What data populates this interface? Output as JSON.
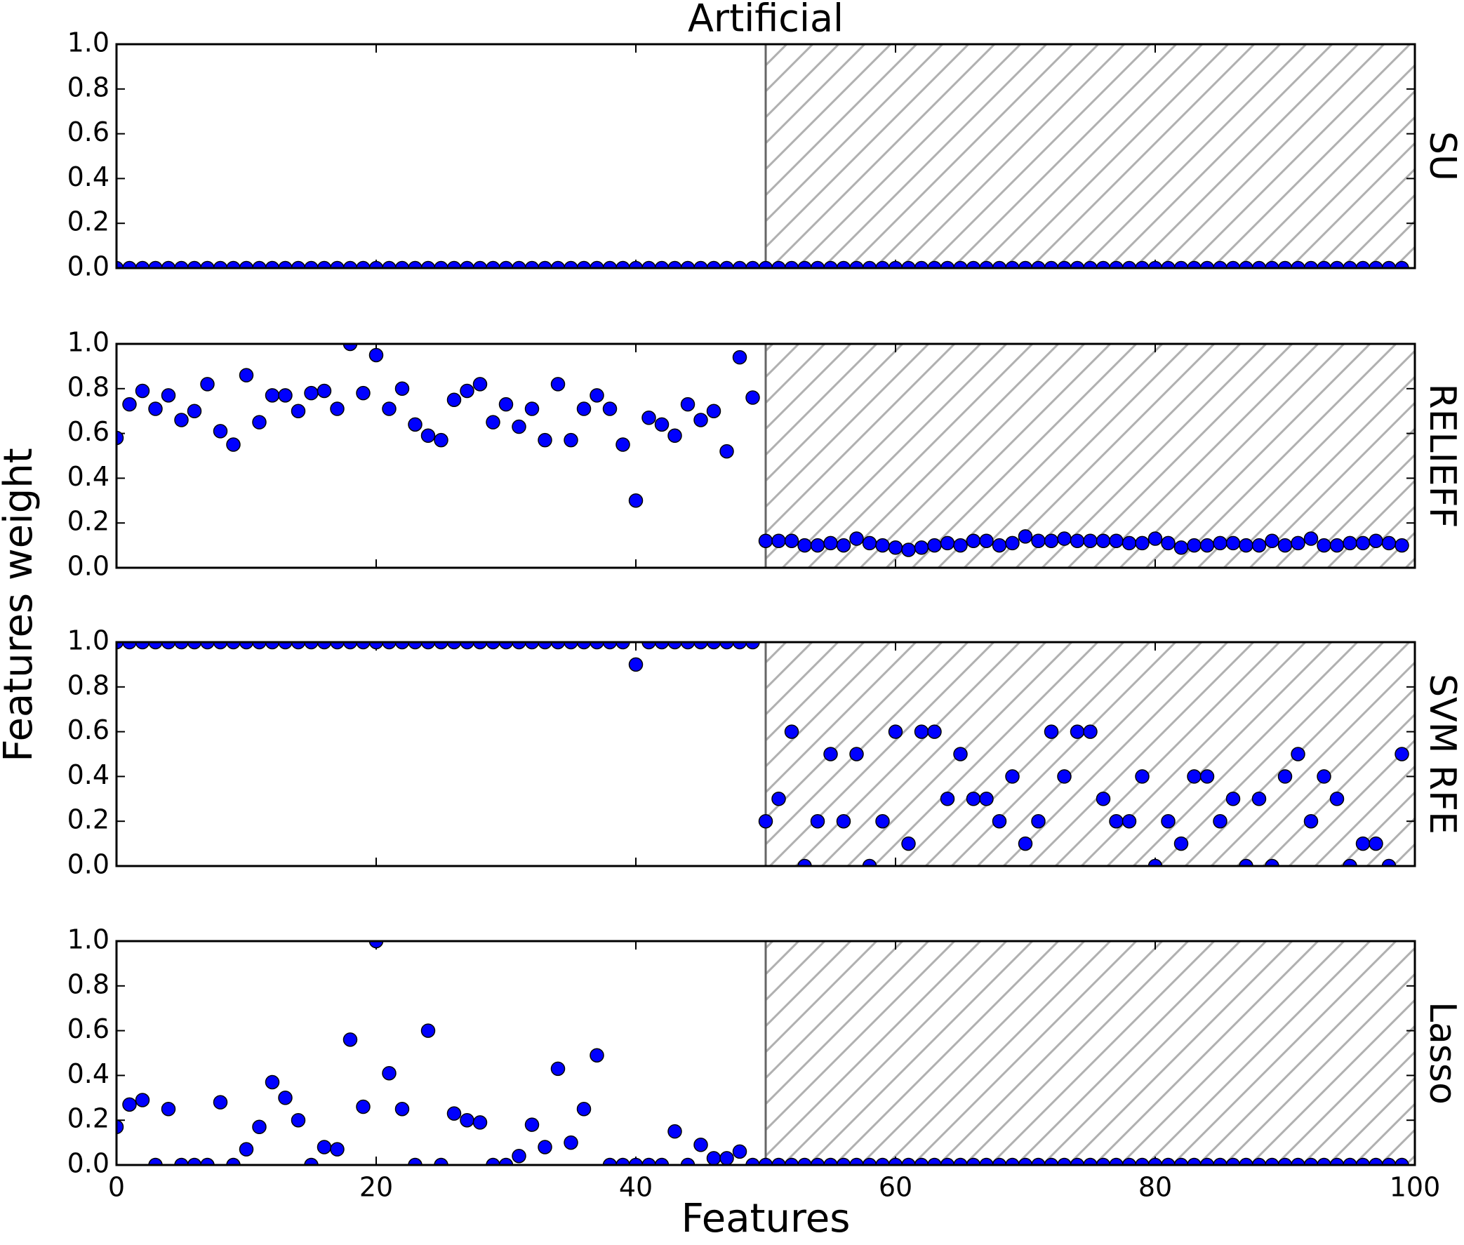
{
  "chart_data": {
    "type": "scatter",
    "title": "Artificial",
    "xlabel": "Features",
    "ylabel": "Features weight",
    "xlim": [
      0,
      100
    ],
    "xticks": [
      0,
      20,
      40,
      60,
      80,
      100
    ],
    "ylim": [
      0,
      1
    ],
    "yticks": [
      {
        "value": 0,
        "label": "0.0"
      },
      {
        "value": 0.2,
        "label": "0.2"
      },
      {
        "value": 0.4,
        "label": "0.4"
      },
      {
        "value": 0.6,
        "label": "0.6"
      },
      {
        "value": 0.8,
        "label": "0.8"
      },
      {
        "value": 1,
        "label": "1.0"
      }
    ],
    "shade_xlim": [
      50,
      100
    ],
    "color": "#0000ff",
    "edgecolor": "#000000",
    "x": [
      0,
      1,
      2,
      3,
      4,
      5,
      6,
      7,
      8,
      9,
      10,
      11,
      12,
      13,
      14,
      15,
      16,
      17,
      18,
      19,
      20,
      21,
      22,
      23,
      24,
      25,
      26,
      27,
      28,
      29,
      30,
      31,
      32,
      33,
      34,
      35,
      36,
      37,
      38,
      39,
      40,
      41,
      42,
      43,
      44,
      45,
      46,
      47,
      48,
      49,
      50,
      51,
      52,
      53,
      54,
      55,
      56,
      57,
      58,
      59,
      60,
      61,
      62,
      63,
      64,
      65,
      66,
      67,
      68,
      69,
      70,
      71,
      72,
      73,
      74,
      75,
      76,
      77,
      78,
      79,
      80,
      81,
      82,
      83,
      84,
      85,
      86,
      87,
      88,
      89,
      90,
      91,
      92,
      93,
      94,
      95,
      96,
      97,
      98,
      99
    ],
    "panels": [
      {
        "name": "SU",
        "values": [
          0,
          0,
          0,
          0,
          0,
          0,
          0,
          0,
          0,
          0,
          0,
          0,
          0,
          0,
          0,
          0,
          0,
          0,
          0,
          0,
          0,
          0,
          0,
          0,
          0,
          0,
          0,
          0,
          0,
          0,
          0,
          0,
          0,
          0,
          0,
          0,
          0,
          0,
          0,
          0,
          0,
          0,
          0,
          0,
          0,
          0,
          0,
          0,
          0,
          0,
          0,
          0,
          0,
          0,
          0,
          0,
          0,
          0,
          0,
          0,
          0,
          0,
          0,
          0,
          0,
          0,
          0,
          0,
          0,
          0,
          0,
          0,
          0,
          0,
          0,
          0,
          0,
          0,
          0,
          0,
          0,
          0,
          0,
          0,
          0,
          0,
          0,
          0,
          0,
          0,
          0,
          0,
          0,
          0,
          0,
          0,
          0,
          0,
          0,
          0
        ]
      },
      {
        "name": "RELIEFF",
        "values": [
          0.58,
          0.73,
          0.79,
          0.71,
          0.77,
          0.66,
          0.7,
          0.82,
          0.61,
          0.55,
          0.86,
          0.65,
          0.77,
          0.77,
          0.7,
          0.78,
          0.79,
          0.71,
          1.0,
          0.78,
          0.95,
          0.71,
          0.8,
          0.64,
          0.59,
          0.57,
          0.75,
          0.79,
          0.82,
          0.65,
          0.73,
          0.63,
          0.71,
          0.57,
          0.82,
          0.57,
          0.71,
          0.77,
          0.71,
          0.55,
          0.3,
          0.67,
          0.64,
          0.59,
          0.73,
          0.66,
          0.7,
          0.52,
          0.94,
          0.76,
          0.12,
          0.12,
          0.12,
          0.1,
          0.1,
          0.11,
          0.1,
          0.13,
          0.11,
          0.1,
          0.09,
          0.08,
          0.09,
          0.1,
          0.11,
          0.1,
          0.12,
          0.12,
          0.1,
          0.11,
          0.14,
          0.12,
          0.12,
          0.13,
          0.12,
          0.12,
          0.12,
          0.12,
          0.11,
          0.11,
          0.13,
          0.11,
          0.09,
          0.1,
          0.1,
          0.11,
          0.11,
          0.1,
          0.1,
          0.12,
          0.1,
          0.11,
          0.13,
          0.1,
          0.1,
          0.11,
          0.11,
          0.12,
          0.11,
          0.1
        ]
      },
      {
        "name": "SVM RFE",
        "values": [
          1,
          1,
          1,
          1,
          1,
          1,
          1,
          1,
          1,
          1,
          1,
          1,
          1,
          1,
          1,
          1,
          1,
          1,
          1,
          1,
          1,
          1,
          1,
          1,
          1,
          1,
          1,
          1,
          1,
          1,
          1,
          1,
          1,
          1,
          1,
          1,
          1,
          1,
          1,
          1,
          0.9,
          1,
          1,
          1,
          1,
          1,
          1,
          1,
          1,
          1,
          0.2,
          0.3,
          0.6,
          0,
          0.2,
          0.5,
          0.2,
          0.5,
          0,
          0.2,
          0.6,
          0.1,
          0.6,
          0.6,
          0.3,
          0.5,
          0.3,
          0.3,
          0.2,
          0.4,
          0.1,
          0.2,
          0.6,
          0.4,
          0.6,
          0.6,
          0.3,
          0.2,
          0.2,
          0.4,
          0,
          0.2,
          0.1,
          0.4,
          0.4,
          0.2,
          0.3,
          0,
          0.3,
          0,
          0.4,
          0.5,
          0.2,
          0.4,
          0.3,
          0,
          0.1,
          0.1,
          0,
          0.5
        ]
      },
      {
        "name": "Lasso",
        "values": [
          0.17,
          0.27,
          0.29,
          0,
          0.25,
          0,
          0,
          0,
          0.28,
          0,
          0.07,
          0.17,
          0.37,
          0.3,
          0.2,
          0,
          0.08,
          0.07,
          0.56,
          0.26,
          1.0,
          0.41,
          0.25,
          0,
          0.6,
          0,
          0.23,
          0.2,
          0.19,
          0,
          0,
          0.04,
          0.18,
          0.08,
          0.43,
          0.1,
          0.25,
          0.49,
          0,
          0,
          0,
          0,
          0,
          0.15,
          0,
          0.09,
          0.03,
          0.03,
          0.06,
          0,
          0,
          0,
          0,
          0,
          0,
          0,
          0,
          0,
          0,
          0,
          0,
          0,
          0,
          0,
          0,
          0,
          0,
          0,
          0,
          0,
          0,
          0,
          0,
          0,
          0,
          0,
          0,
          0,
          0,
          0,
          0,
          0,
          0,
          0,
          0,
          0,
          0,
          0,
          0,
          0,
          0,
          0,
          0,
          0,
          0,
          0,
          0,
          0,
          0,
          0
        ]
      }
    ]
  }
}
